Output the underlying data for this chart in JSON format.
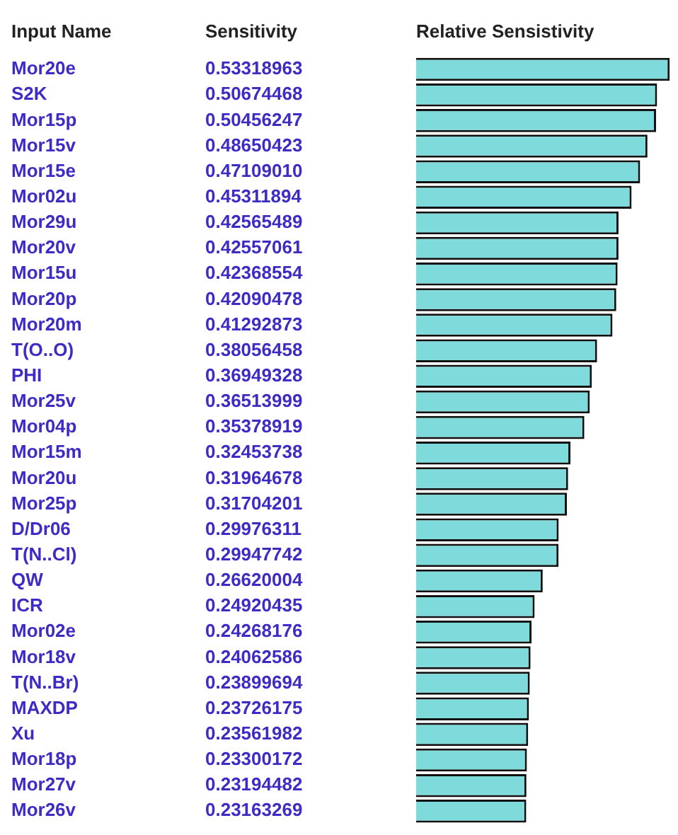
{
  "chart_data": {
    "type": "bar",
    "orientation": "horizontal",
    "ylabel": "Input Name",
    "xlabel": "Relative Sensistivity",
    "annotations": [
      "Sensitivity"
    ],
    "categories": [
      "Mor20e",
      "S2K",
      "Mor15p",
      "Mor15v",
      "Mor15e",
      "Mor02u",
      "Mor29u",
      "Mor20v",
      "Mor15u",
      "Mor20p",
      "Mor20m",
      "T(O..O)",
      "PHI",
      "Mor25v",
      "Mor04p",
      "Mor15m",
      "Mor20u",
      "Mor25p",
      "D/Dr06",
      "T(N..Cl)",
      "QW",
      "ICR",
      "Mor02e",
      "Mor18v",
      "T(N..Br)",
      "MAXDP",
      "Xu",
      "Mor18p",
      "Mor27v",
      "Mor26v"
    ],
    "values": [
      0.53318963,
      0.50674468,
      0.50456247,
      0.48650423,
      0.4710901,
      0.45311894,
      0.42565489,
      0.42557061,
      0.42368554,
      0.42090478,
      0.41292873,
      0.38056458,
      0.36949328,
      0.36513999,
      0.35378919,
      0.32453738,
      0.31964678,
      0.31704201,
      0.29976311,
      0.29947742,
      0.26620004,
      0.24920435,
      0.24268176,
      0.24062586,
      0.23899694,
      0.23726175,
      0.23561982,
      0.23300172,
      0.23194482,
      0.23163269
    ],
    "value_labels": [
      "0.53318963",
      "0.50674468",
      "0.50456247",
      "0.48650423",
      "0.47109010",
      "0.45311894",
      "0.42565489",
      "0.42557061",
      "0.42368554",
      "0.42090478",
      "0.41292873",
      "0.38056458",
      "0.36949328",
      "0.36513999",
      "0.35378919",
      "0.32453738",
      "0.31964678",
      "0.31704201",
      "0.29976311",
      "0.29947742",
      "0.26620004",
      "0.24920435",
      "0.24268176",
      "0.24062586",
      "0.23899694",
      "0.23726175",
      "0.23561982",
      "0.23300172",
      "0.23194482",
      "0.23163269"
    ],
    "color": "#7fdbdb",
    "grid": false,
    "legend": false
  }
}
